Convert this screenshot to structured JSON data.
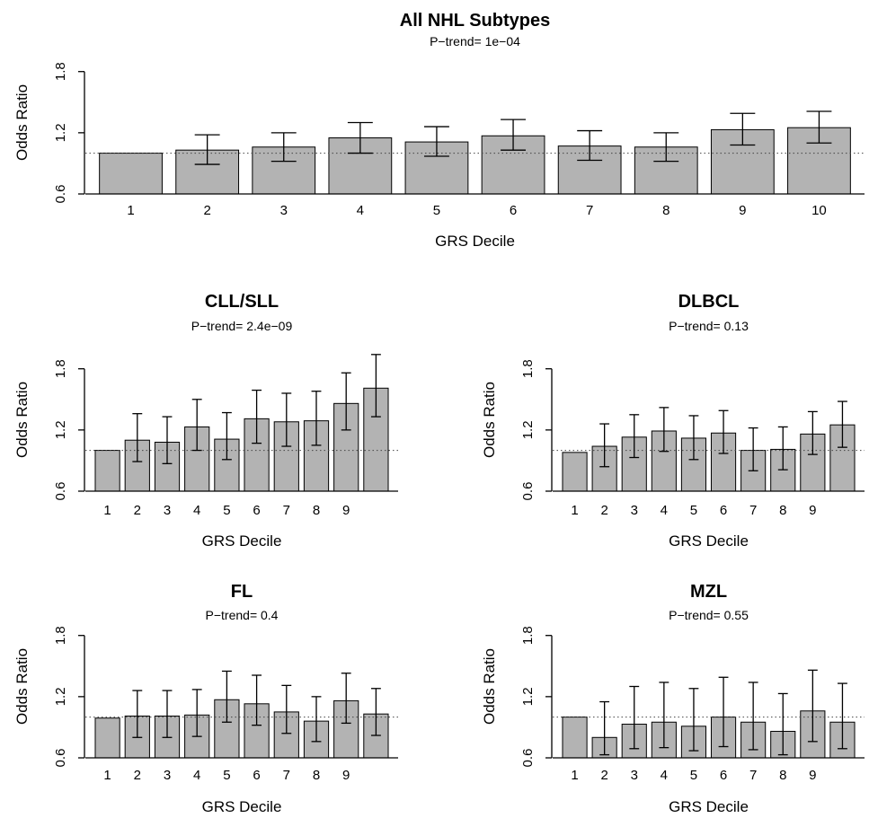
{
  "chart_data": [
    {
      "type": "bar",
      "title": "All NHL Subtypes",
      "subtitle": "P−trend= 1e−04",
      "xlabel": "GRS Decile",
      "ylabel": "Odds Ratio",
      "categories": [
        "1",
        "2",
        "3",
        "4",
        "5",
        "6",
        "7",
        "8",
        "9",
        "10"
      ],
      "values": [
        1.0,
        1.03,
        1.06,
        1.15,
        1.11,
        1.17,
        1.07,
        1.06,
        1.23,
        1.25
      ],
      "ci_lower": [
        1.0,
        0.89,
        0.92,
        1.0,
        0.97,
        1.03,
        0.93,
        0.92,
        1.08,
        1.1
      ],
      "ci_upper": [
        1.0,
        1.18,
        1.2,
        1.3,
        1.26,
        1.33,
        1.22,
        1.2,
        1.39,
        1.41
      ],
      "ylim": [
        0.6,
        2.0
      ],
      "yticks": [
        0.6,
        1.2,
        1.8
      ],
      "reference_line": 1.0,
      "grid": false
    },
    {
      "type": "bar",
      "title": "CLL/SLL",
      "subtitle": "P−trend= 2.4e−09",
      "xlabel": "GRS Decile",
      "ylabel": "Odds Ratio",
      "categories": [
        "1",
        "2",
        "3",
        "4",
        "5",
        "6",
        "7",
        "8",
        "9",
        ""
      ],
      "values": [
        1.0,
        1.1,
        1.08,
        1.23,
        1.11,
        1.31,
        1.28,
        1.29,
        1.46,
        1.61
      ],
      "ci_lower": [
        1.0,
        0.89,
        0.87,
        1.0,
        0.91,
        1.07,
        1.04,
        1.05,
        1.2,
        1.33
      ],
      "ci_upper": [
        1.0,
        1.36,
        1.33,
        1.5,
        1.37,
        1.59,
        1.56,
        1.58,
        1.76,
        1.94
      ],
      "ylim": [
        0.6,
        2.0
      ],
      "yticks": [
        0.6,
        1.2,
        1.8
      ],
      "reference_line": 1.0,
      "grid": false
    },
    {
      "type": "bar",
      "title": "DLBCL",
      "subtitle": "P−trend= 0.13",
      "xlabel": "GRS Decile",
      "ylabel": "Odds Ratio",
      "categories": [
        "1",
        "2",
        "3",
        "4",
        "5",
        "6",
        "7",
        "8",
        "9",
        ""
      ],
      "values": [
        0.98,
        1.04,
        1.13,
        1.19,
        1.12,
        1.17,
        1.0,
        1.01,
        1.16,
        1.25
      ],
      "ci_lower": [
        0.98,
        0.84,
        0.93,
        0.99,
        0.91,
        0.97,
        0.8,
        0.81,
        0.96,
        1.03
      ],
      "ci_upper": [
        0.98,
        1.26,
        1.35,
        1.42,
        1.34,
        1.39,
        1.22,
        1.23,
        1.38,
        1.48
      ],
      "ylim": [
        0.6,
        2.0
      ],
      "yticks": [
        0.6,
        1.2,
        1.8
      ],
      "reference_line": 1.0,
      "grid": false
    },
    {
      "type": "bar",
      "title": "FL",
      "subtitle": "P−trend= 0.4",
      "xlabel": "GRS Decile",
      "ylabel": "Odds Ratio",
      "categories": [
        "1",
        "2",
        "3",
        "4",
        "5",
        "6",
        "7",
        "8",
        "9",
        ""
      ],
      "values": [
        0.99,
        1.01,
        1.01,
        1.02,
        1.17,
        1.13,
        1.05,
        0.96,
        1.16,
        1.03
      ],
      "ci_lower": [
        0.99,
        0.8,
        0.8,
        0.81,
        0.95,
        0.92,
        0.84,
        0.76,
        0.94,
        0.82
      ],
      "ci_upper": [
        0.99,
        1.26,
        1.26,
        1.27,
        1.45,
        1.41,
        1.31,
        1.2,
        1.43,
        1.28
      ],
      "ylim": [
        0.6,
        2.0
      ],
      "yticks": [
        0.6,
        1.2,
        1.8
      ],
      "reference_line": 1.0,
      "grid": false
    },
    {
      "type": "bar",
      "title": "MZL",
      "subtitle": "P−trend= 0.55",
      "xlabel": "GRS Decile",
      "ylabel": "Odds Ratio",
      "categories": [
        "1",
        "2",
        "3",
        "4",
        "5",
        "6",
        "7",
        "8",
        "9",
        ""
      ],
      "values": [
        1.0,
        0.8,
        0.93,
        0.95,
        0.91,
        1.0,
        0.95,
        0.86,
        1.06,
        0.95
      ],
      "ci_lower": [
        1.0,
        0.63,
        0.69,
        0.7,
        0.67,
        0.71,
        0.68,
        0.63,
        0.76,
        0.69
      ],
      "ci_upper": [
        1.0,
        1.15,
        1.3,
        1.34,
        1.28,
        1.39,
        1.34,
        1.23,
        1.46,
        1.33
      ],
      "ylim": [
        0.6,
        2.0
      ],
      "yticks": [
        0.6,
        1.2,
        1.8
      ],
      "reference_line": 1.0,
      "grid": false
    }
  ],
  "colors": {
    "bar_fill": "#b3b3b3",
    "bar_stroke": "#000000",
    "axis": "#000000",
    "reference_line": "#444444"
  }
}
